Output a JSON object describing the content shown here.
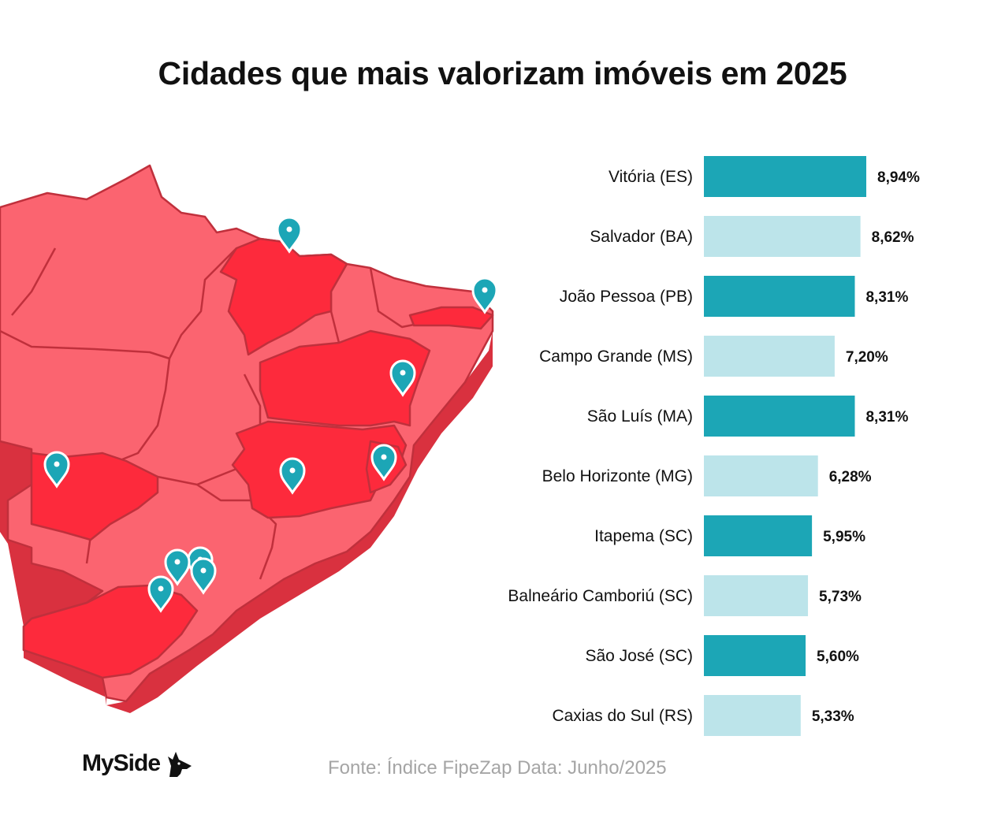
{
  "title": "Cidades que mais valorizam imóveis em 2025",
  "source": "Fonte: Índice FipeZap Data: Junho/2025",
  "logo": {
    "text": "MySide",
    "icon": "dog-head-icon"
  },
  "colors": {
    "dark_bar": "#1ca6b6",
    "light_bar": "#bce4ea",
    "state_base": "#fb6470",
    "state_highlight": "#fd2a3c",
    "state_side": "#d9313f",
    "state_border": "#c0303c",
    "pin": "#1ca6b6"
  },
  "map": {
    "icon": "brazil-map-icon",
    "pin_icon": "map-pin-icon",
    "pin_count": 10
  },
  "chart_data": {
    "type": "bar",
    "orientation": "horizontal",
    "categories": [
      "Vitória (ES)",
      "Salvador (BA)",
      "João Pessoa (PB)",
      "Campo Grande (MS)",
      "São Luís (MA)",
      "Belo Horizonte (MG)",
      "Itapema (SC)",
      "Balneário Camboriú (SC)",
      "São José (SC)",
      "Caxias do Sul (RS)"
    ],
    "values": [
      8.94,
      8.62,
      8.31,
      7.2,
      8.31,
      6.28,
      5.95,
      5.73,
      5.6,
      5.33
    ],
    "value_labels": [
      "8,94%",
      "8,62%",
      "8,31%",
      "7,20%",
      "8,31%",
      "6,28%",
      "5,95%",
      "5,73%",
      "5,60%",
      "5,33%"
    ],
    "bar_shades": [
      "dark",
      "light",
      "dark",
      "light",
      "dark",
      "light",
      "dark",
      "light",
      "dark",
      "light"
    ],
    "xlim": [
      0,
      8.94
    ],
    "grid": false,
    "legend": "none"
  }
}
